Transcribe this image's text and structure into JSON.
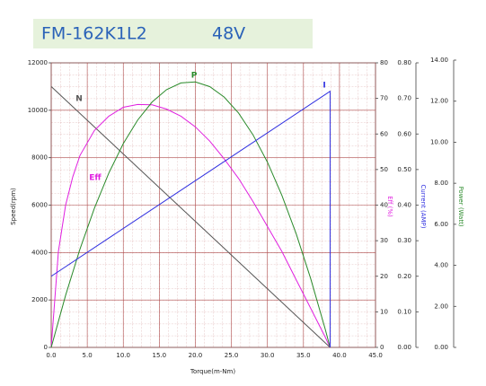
{
  "chart_data": {
    "type": "line",
    "title": "FM-162K1L2",
    "subtitle": "48V",
    "xlabel": "Torque(m-Nm)",
    "ylabel": "Speed(rpm)",
    "y2label": "Eff (%)",
    "y3label": "Current (AMP)",
    "y4label": "Power (Watt)",
    "xlim": [
      0,
      45
    ],
    "xticks": [
      {
        "value": 0,
        "label": "0.0"
      },
      {
        "value": 5,
        "label": "5.0"
      },
      {
        "value": 10,
        "label": "10.0"
      },
      {
        "value": 15,
        "label": "15.0"
      },
      {
        "value": 20,
        "label": "20.0"
      },
      {
        "value": 25,
        "label": "25.0"
      },
      {
        "value": 30,
        "label": "30.0"
      },
      {
        "value": 35,
        "label": "35.0"
      },
      {
        "value": 40,
        "label": "40.0"
      },
      {
        "value": 45,
        "label": "45.0"
      }
    ],
    "ylim": [
      0,
      12000
    ],
    "yticks": [
      0,
      2000,
      4000,
      6000,
      8000,
      10000,
      12000
    ],
    "y2lim": [
      0,
      80
    ],
    "y2ticks": [
      0,
      10,
      20,
      30,
      40,
      50,
      60,
      70,
      80
    ],
    "y3lim": [
      0,
      0.8
    ],
    "y3ticks": [
      {
        "value": 0,
        "label": "0.00"
      },
      {
        "value": 0.1,
        "label": "0.10"
      },
      {
        "value": 0.2,
        "label": "0.20"
      },
      {
        "value": 0.3,
        "label": "0.30"
      },
      {
        "value": 0.4,
        "label": "0.40"
      },
      {
        "value": 0.5,
        "label": "0.50"
      },
      {
        "value": 0.6,
        "label": "0.60"
      },
      {
        "value": 0.7,
        "label": "0.70"
      },
      {
        "value": 0.8,
        "label": "0.80"
      }
    ],
    "y4lim": [
      0,
      14
    ],
    "y4ticks": [
      {
        "value": 0,
        "label": "0.00"
      },
      {
        "value": 2,
        "label": "2.00"
      },
      {
        "value": 4,
        "label": "4.00"
      },
      {
        "value": 6,
        "label": "6.00"
      },
      {
        "value": 8,
        "label": "8.00"
      },
      {
        "value": 10,
        "label": "10.00"
      },
      {
        "value": 12,
        "label": "12.00"
      },
      {
        "value": 14,
        "label": "14.00"
      }
    ],
    "grid": true,
    "series": [
      {
        "name": "N",
        "color": "#555555",
        "axis": "y",
        "x": [
          0,
          38.7
        ],
        "values": [
          11000,
          0
        ]
      },
      {
        "name": "Eff",
        "color": "#e020e0",
        "axis": "y2",
        "x": [
          0,
          1,
          2,
          3,
          4,
          6,
          8,
          10,
          12,
          14,
          16,
          18,
          20,
          22,
          24,
          26,
          28,
          30,
          32,
          34,
          36,
          38,
          38.7
        ],
        "values": [
          0,
          27,
          40,
          48,
          54,
          61,
          65,
          67.5,
          68.3,
          68.2,
          67,
          65,
          62,
          58,
          53,
          47.5,
          41,
          34,
          27,
          19,
          11,
          3,
          0
        ]
      },
      {
        "name": "P",
        "color": "#2a8a2a",
        "axis": "y4",
        "x": [
          0,
          2,
          4,
          6,
          8,
          10,
          12,
          14,
          16,
          18,
          20,
          22,
          24,
          26,
          28,
          30,
          32,
          34,
          36,
          38,
          38.7
        ],
        "values": [
          0,
          2.54,
          4.8,
          6.79,
          8.5,
          9.93,
          11.08,
          11.96,
          12.56,
          12.89,
          12.94,
          12.71,
          12.2,
          11.42,
          10.36,
          9.03,
          7.42,
          5.53,
          3.36,
          0.92,
          0
        ]
      },
      {
        "name": "I",
        "color": "#3030e0",
        "axis": "y3",
        "x": [
          0,
          38.7,
          38.7
        ],
        "values": [
          0.2,
          0.72,
          0
        ]
      }
    ]
  }
}
